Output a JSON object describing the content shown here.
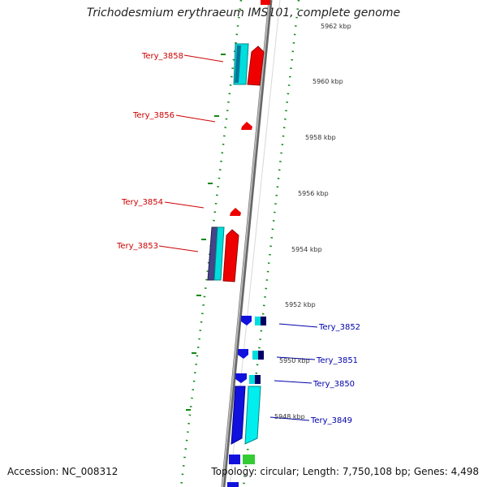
{
  "title": "Trichodesmium erythraeum IMS101, complete genome",
  "footer": {
    "accession": "Accession: NC_008312",
    "topology": "Topology: circular; Length: 7,750,108 bp; Genes: 4,498"
  },
  "scale": {
    "ticks": [
      "5962 kbp",
      "5960 kbp",
      "5958 kbp",
      "5956 kbp",
      "5954 kbp",
      "5952 kbp",
      "5950 kbp",
      "5948 kbp"
    ]
  },
  "genes": {
    "reverse": [
      "Tery_3858",
      "Tery_3856",
      "Tery_3854",
      "Tery_3853"
    ],
    "forward": [
      "Tery_3852",
      "Tery_3851",
      "Tery_3850",
      "Tery_3849"
    ]
  },
  "colors": {
    "reverse_label": "#cc0000",
    "forward_label": "#0000aa",
    "tick": "#118811",
    "backbone": "#888888"
  }
}
